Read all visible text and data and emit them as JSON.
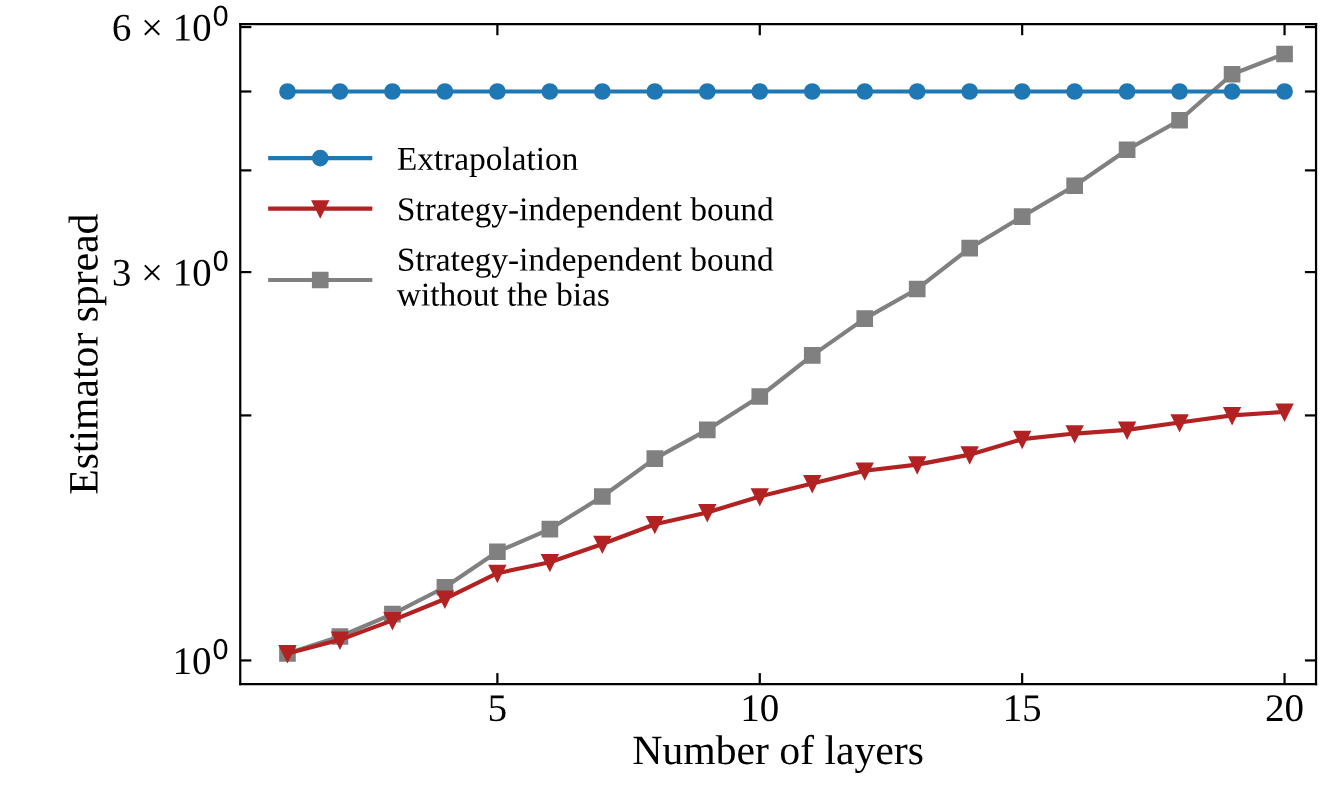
{
  "chart_data": {
    "type": "line",
    "xlabel": "Number of layers",
    "ylabel": "Estimator spread",
    "log": "y",
    "x": [
      1,
      2,
      3,
      4,
      5,
      6,
      7,
      8,
      9,
      10,
      11,
      12,
      13,
      14,
      15,
      16,
      17,
      18,
      19,
      20
    ],
    "xlim": [
      0.1,
      20.6
    ],
    "xticks": [
      5,
      10,
      15,
      20
    ],
    "ylim": [
      0.935,
      6.05
    ],
    "yticks": [
      {
        "value": 1,
        "label": "10$^{0}$"
      },
      {
        "value": 2,
        "label": null
      },
      {
        "value": 3,
        "label": "3 × 10$^{0}$"
      },
      {
        "value": 4,
        "label": null
      },
      {
        "value": 5,
        "label": null
      },
      {
        "value": 6,
        "label": "6 × 10$^{0}$"
      }
    ],
    "grid": false,
    "legend": "top left",
    "series": [
      {
        "name": "Extrapolation",
        "color": "#1f77b4",
        "marker": "circle",
        "values": [
          5.0,
          5.0,
          5.0,
          5.0,
          5.0,
          5.0,
          5.0,
          5.0,
          5.0,
          5.0,
          5.0,
          5.0,
          5.0,
          5.0,
          5.0,
          5.0,
          5.0,
          5.0,
          5.0,
          5.0
        ]
      },
      {
        "name": "Strategy-independent bound",
        "color": "#b22222",
        "marker": "triangle",
        "values": [
          1.02,
          1.06,
          1.12,
          1.19,
          1.28,
          1.32,
          1.39,
          1.47,
          1.52,
          1.59,
          1.65,
          1.71,
          1.74,
          1.79,
          1.87,
          1.9,
          1.92,
          1.96,
          2.0,
          2.02
        ]
      },
      {
        "name": "Strategy-independent bound\nwithout the bias",
        "color": "#808080",
        "marker": "square",
        "values": [
          1.02,
          1.07,
          1.14,
          1.23,
          1.36,
          1.45,
          1.59,
          1.77,
          1.92,
          2.11,
          2.37,
          2.63,
          2.86,
          3.21,
          3.51,
          3.83,
          4.24,
          4.61,
          5.25,
          5.56
        ]
      }
    ]
  }
}
